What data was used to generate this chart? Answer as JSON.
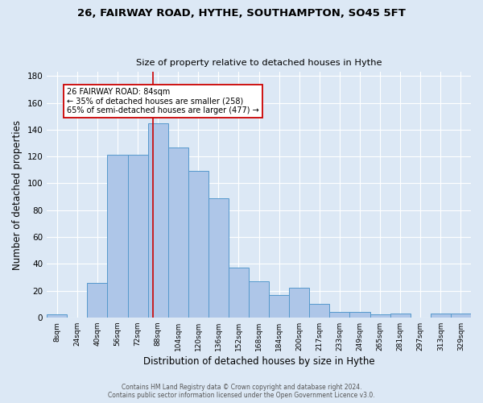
{
  "title1": "26, FAIRWAY ROAD, HYTHE, SOUTHAMPTON, SO45 5FT",
  "title2": "Size of property relative to detached houses in Hythe",
  "xlabel": "Distribution of detached houses by size in Hythe",
  "ylabel": "Number of detached properties",
  "bin_labels": [
    "8sqm",
    "24sqm",
    "40sqm",
    "56sqm",
    "72sqm",
    "88sqm",
    "104sqm",
    "120sqm",
    "136sqm",
    "152sqm",
    "168sqm",
    "184sqm",
    "200sqm",
    "217sqm",
    "233sqm",
    "249sqm",
    "265sqm",
    "281sqm",
    "297sqm",
    "313sqm",
    "329sqm"
  ],
  "heights": [
    2,
    0,
    26,
    121,
    121,
    145,
    127,
    109,
    89,
    37,
    27,
    17,
    22,
    10,
    4,
    4,
    2,
    3,
    0,
    3,
    3
  ],
  "annotation_title": "26 FAIRWAY ROAD: 84sqm",
  "annotation_line1": "← 35% of detached houses are smaller (258)",
  "annotation_line2": "65% of semi-detached houses are larger (477) →",
  "vline_index": 4.75,
  "bar_color": "#aec6e8",
  "bar_edge_color": "#5599cc",
  "vline_color": "#cc0000",
  "annotation_box_color": "#ffffff",
  "annotation_box_edge": "#cc0000",
  "background_color": "#dce8f5",
  "grid_color": "#ffffff",
  "footer1": "Contains HM Land Registry data © Crown copyright and database right 2024.",
  "footer2": "Contains public sector information licensed under the Open Government Licence v3.0.",
  "ylim": [
    0,
    183
  ],
  "yticks": [
    0,
    20,
    40,
    60,
    80,
    100,
    120,
    140,
    160,
    180
  ]
}
